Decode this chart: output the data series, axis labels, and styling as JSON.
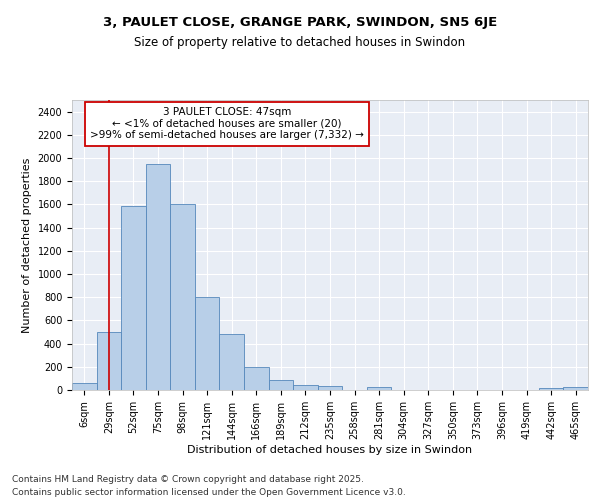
{
  "title1": "3, PAULET CLOSE, GRANGE PARK, SWINDON, SN5 6JE",
  "title2": "Size of property relative to detached houses in Swindon",
  "xlabel": "Distribution of detached houses by size in Swindon",
  "ylabel": "Number of detached properties",
  "categories": [
    "6sqm",
    "29sqm",
    "52sqm",
    "75sqm",
    "98sqm",
    "121sqm",
    "144sqm",
    "166sqm",
    "189sqm",
    "212sqm",
    "235sqm",
    "258sqm",
    "281sqm",
    "304sqm",
    "327sqm",
    "350sqm",
    "373sqm",
    "396sqm",
    "419sqm",
    "442sqm",
    "465sqm"
  ],
  "values": [
    60,
    500,
    1590,
    1950,
    1600,
    800,
    480,
    200,
    90,
    42,
    35,
    0,
    28,
    0,
    0,
    0,
    0,
    0,
    0,
    15,
    25
  ],
  "bar_color": "#b8cfe8",
  "bar_edge_color": "#5588bb",
  "vline_x": 1,
  "vline_color": "#cc0000",
  "annotation_text": "3 PAULET CLOSE: 47sqm\n← <1% of detached houses are smaller (20)\n>99% of semi-detached houses are larger (7,332) →",
  "annotation_box_color": "#ffffff",
  "annotation_box_edge": "#cc0000",
  "ylim": [
    0,
    2500
  ],
  "yticks": [
    0,
    200,
    400,
    600,
    800,
    1000,
    1200,
    1400,
    1600,
    1800,
    2000,
    2200,
    2400
  ],
  "bg_color": "#e8edf5",
  "grid_color": "#ffffff",
  "footer1": "Contains HM Land Registry data © Crown copyright and database right 2025.",
  "footer2": "Contains public sector information licensed under the Open Government Licence v3.0.",
  "title1_fontsize": 9.5,
  "title2_fontsize": 8.5,
  "label_fontsize": 8,
  "tick_fontsize": 7,
  "footer_fontsize": 6.5,
  "annot_fontsize": 7.5
}
